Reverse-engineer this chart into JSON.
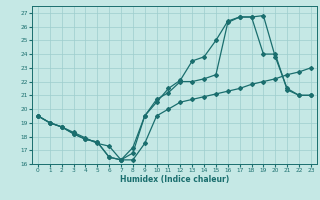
{
  "xlabel": "Humidex (Indice chaleur)",
  "bg_color": "#c5e8e5",
  "grid_color": "#9ecece",
  "line_color": "#1a6e6e",
  "xlim": [
    -0.5,
    23.5
  ],
  "ylim": [
    16,
    27.5
  ],
  "xticks": [
    0,
    1,
    2,
    3,
    4,
    5,
    6,
    7,
    8,
    9,
    10,
    11,
    12,
    13,
    14,
    15,
    16,
    17,
    18,
    19,
    20,
    21,
    22,
    23
  ],
  "yticks": [
    16,
    17,
    18,
    19,
    20,
    21,
    22,
    23,
    24,
    25,
    26,
    27
  ],
  "series1_x": [
    0,
    1,
    2,
    3,
    4,
    5,
    6,
    7,
    8,
    9,
    10,
    11,
    12,
    13,
    14,
    15,
    16,
    17,
    18,
    19,
    20,
    21,
    22,
    23
  ],
  "series1_y": [
    19.5,
    19.0,
    18.7,
    18.3,
    17.9,
    17.5,
    17.3,
    16.3,
    16.3,
    17.5,
    19.5,
    20.0,
    20.5,
    20.7,
    20.9,
    21.1,
    21.3,
    21.5,
    21.8,
    22.0,
    22.2,
    22.5,
    22.7,
    23.0
  ],
  "series2_x": [
    0,
    1,
    2,
    3,
    4,
    5,
    6,
    7,
    8,
    9,
    10,
    11,
    12,
    13,
    14,
    15,
    16,
    17,
    18,
    19,
    20,
    21,
    22,
    23
  ],
  "series2_y": [
    19.5,
    19.0,
    18.7,
    18.2,
    17.8,
    17.6,
    16.5,
    16.3,
    16.8,
    19.5,
    20.5,
    21.5,
    22.1,
    23.5,
    23.8,
    25.0,
    26.4,
    26.7,
    26.7,
    26.8,
    23.8,
    21.5,
    21.0,
    21.0
  ],
  "series3_x": [
    0,
    1,
    2,
    3,
    4,
    5,
    6,
    7,
    8,
    9,
    10,
    11,
    12,
    13,
    14,
    15,
    16,
    17,
    18,
    19,
    20,
    21,
    22,
    23
  ],
  "series3_y": [
    19.5,
    19.0,
    18.7,
    18.2,
    17.8,
    17.6,
    16.5,
    16.3,
    17.2,
    19.5,
    20.7,
    21.2,
    22.0,
    22.0,
    22.2,
    22.5,
    26.3,
    26.7,
    26.7,
    24.0,
    24.0,
    21.4,
    21.0,
    21.0
  ]
}
